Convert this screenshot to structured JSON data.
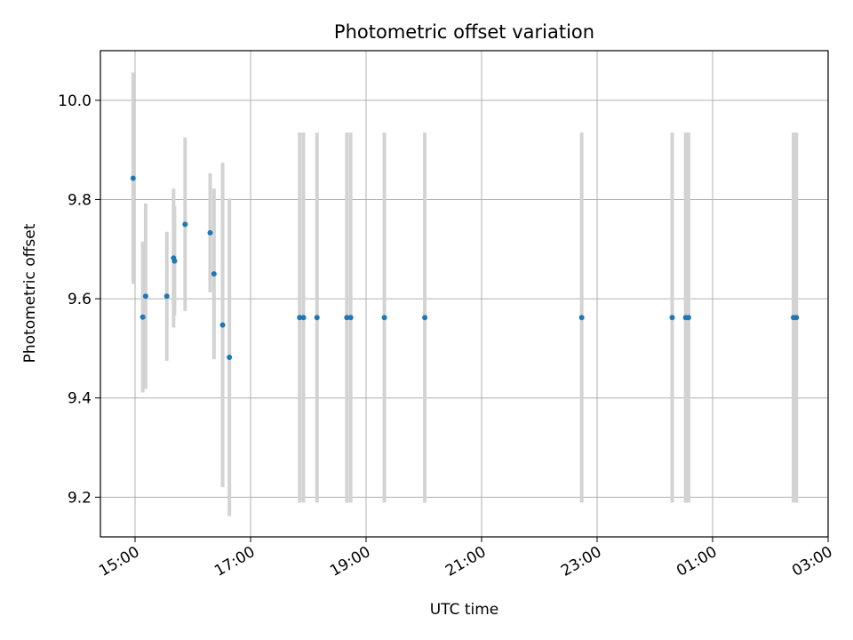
{
  "chart_data": {
    "type": "scatter",
    "title": "Photometric offset variation",
    "xlabel": "UTC time",
    "ylabel": "Photometric offset",
    "x_tick_labels": [
      "15:00",
      "17:00",
      "19:00",
      "21:00",
      "23:00",
      "01:00",
      "03:00"
    ],
    "x_tick_hours": [
      15,
      17,
      19,
      21,
      23,
      25,
      27
    ],
    "xlim_hours": [
      14.4,
      27.0
    ],
    "y_tick_labels": [
      "9.2",
      "9.4",
      "9.6",
      "9.8",
      "10.0"
    ],
    "y_tick_values": [
      9.2,
      9.4,
      9.6,
      9.8,
      10.0
    ],
    "ylim": [
      9.12,
      10.1
    ],
    "grid": true,
    "point_color": "#1f77b4",
    "errorbar_color": "#d3d3d3",
    "points": [
      {
        "time": "14:58",
        "y": 9.843,
        "err": 0.213
      },
      {
        "time": "15:08",
        "y": 9.563,
        "err": 0.152
      },
      {
        "time": "15:11",
        "y": 9.605,
        "err": 0.187
      },
      {
        "time": "15:33",
        "y": 9.605,
        "err": 0.13
      },
      {
        "time": "15:40",
        "y": 9.682,
        "err": 0.14
      },
      {
        "time": "15:41",
        "y": 9.676,
        "err": 0.11
      },
      {
        "time": "15:52",
        "y": 9.75,
        "err": 0.175
      },
      {
        "time": "16:18",
        "y": 9.733,
        "err": 0.12
      },
      {
        "time": "16:22",
        "y": 9.65,
        "err": 0.172
      },
      {
        "time": "16:31",
        "y": 9.547,
        "err": 0.327
      },
      {
        "time": "16:38",
        "y": 9.482,
        "err": 0.32
      },
      {
        "time": "17:51",
        "y": 9.562,
        "err": 0.373
      },
      {
        "time": "17:55",
        "y": 9.562,
        "err": 0.373
      },
      {
        "time": "18:09",
        "y": 9.562,
        "err": 0.373
      },
      {
        "time": "18:40",
        "y": 9.562,
        "err": 0.373
      },
      {
        "time": "18:44",
        "y": 9.562,
        "err": 0.373
      },
      {
        "time": "19:19",
        "y": 9.562,
        "err": 0.373
      },
      {
        "time": "20:01",
        "y": 9.562,
        "err": 0.373
      },
      {
        "time": "22:44",
        "y": 9.562,
        "err": 0.373
      },
      {
        "time": "00:18",
        "y": 9.562,
        "err": 0.373
      },
      {
        "time": "00:32",
        "y": 9.562,
        "err": 0.373
      },
      {
        "time": "00:35",
        "y": 9.562,
        "err": 0.373
      },
      {
        "time": "02:24",
        "y": 9.562,
        "err": 0.373
      },
      {
        "time": "02:27",
        "y": 9.562,
        "err": 0.373
      }
    ]
  }
}
